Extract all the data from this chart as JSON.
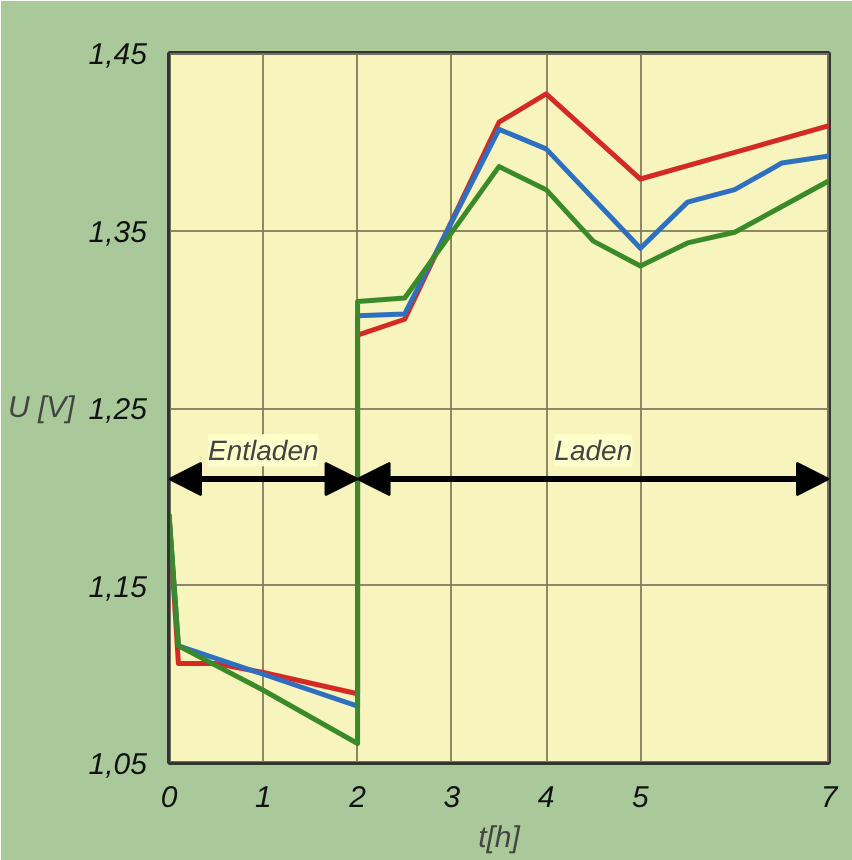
{
  "chart_data": {
    "type": "line",
    "xlabel": "t[h]",
    "ylabel": "U [V]",
    "xlim": [
      0,
      7
    ],
    "xticks": [
      0,
      1,
      2,
      3,
      4,
      5,
      7
    ],
    "ylim": [
      1.05,
      1.45
    ],
    "yticks": [
      {
        "value": 1.05,
        "label": "1,05"
      },
      {
        "value": 1.15,
        "label": "1,15"
      },
      {
        "value": 1.25,
        "label": "1,25"
      },
      {
        "value": 1.35,
        "label": "1,35"
      },
      {
        "value": 1.45,
        "label": "1,45"
      }
    ],
    "grid": true,
    "line_style": "solid",
    "bands": [
      {
        "axis": "x",
        "from": 0,
        "to": 2,
        "label": "Entladen"
      },
      {
        "axis": "x",
        "from": 2,
        "to": 7,
        "label": "Laden"
      }
    ],
    "series": [
      {
        "color": "#d42a26",
        "x": [
          0,
          0.1,
          0.5,
          1,
          2,
          2,
          2.5,
          3.5,
          4,
          5,
          6,
          7
        ],
        "values": [
          1.19,
          1.106,
          1.106,
          1.101,
          1.089,
          1.291,
          1.3,
          1.411,
          1.427,
          1.379,
          1.394,
          1.409
        ]
      },
      {
        "color": "#2e6fc0",
        "x": [
          0,
          0.1,
          1,
          2,
          2,
          2.5,
          3.5,
          4,
          5,
          5.5,
          6,
          6.5,
          7
        ],
        "values": [
          1.19,
          1.116,
          1.1,
          1.082,
          1.302,
          1.303,
          1.407,
          1.396,
          1.34,
          1.366,
          1.373,
          1.388,
          1.392
        ]
      },
      {
        "color": "#3a8a2a",
        "x": [
          0,
          0.1,
          1,
          2,
          2,
          2.5,
          3.5,
          4,
          4.5,
          5,
          5.5,
          6,
          7
        ],
        "values": [
          1.19,
          1.116,
          1.091,
          1.061,
          1.31,
          1.312,
          1.386,
          1.373,
          1.344,
          1.33,
          1.343,
          1.349,
          1.378
        ]
      }
    ]
  }
}
